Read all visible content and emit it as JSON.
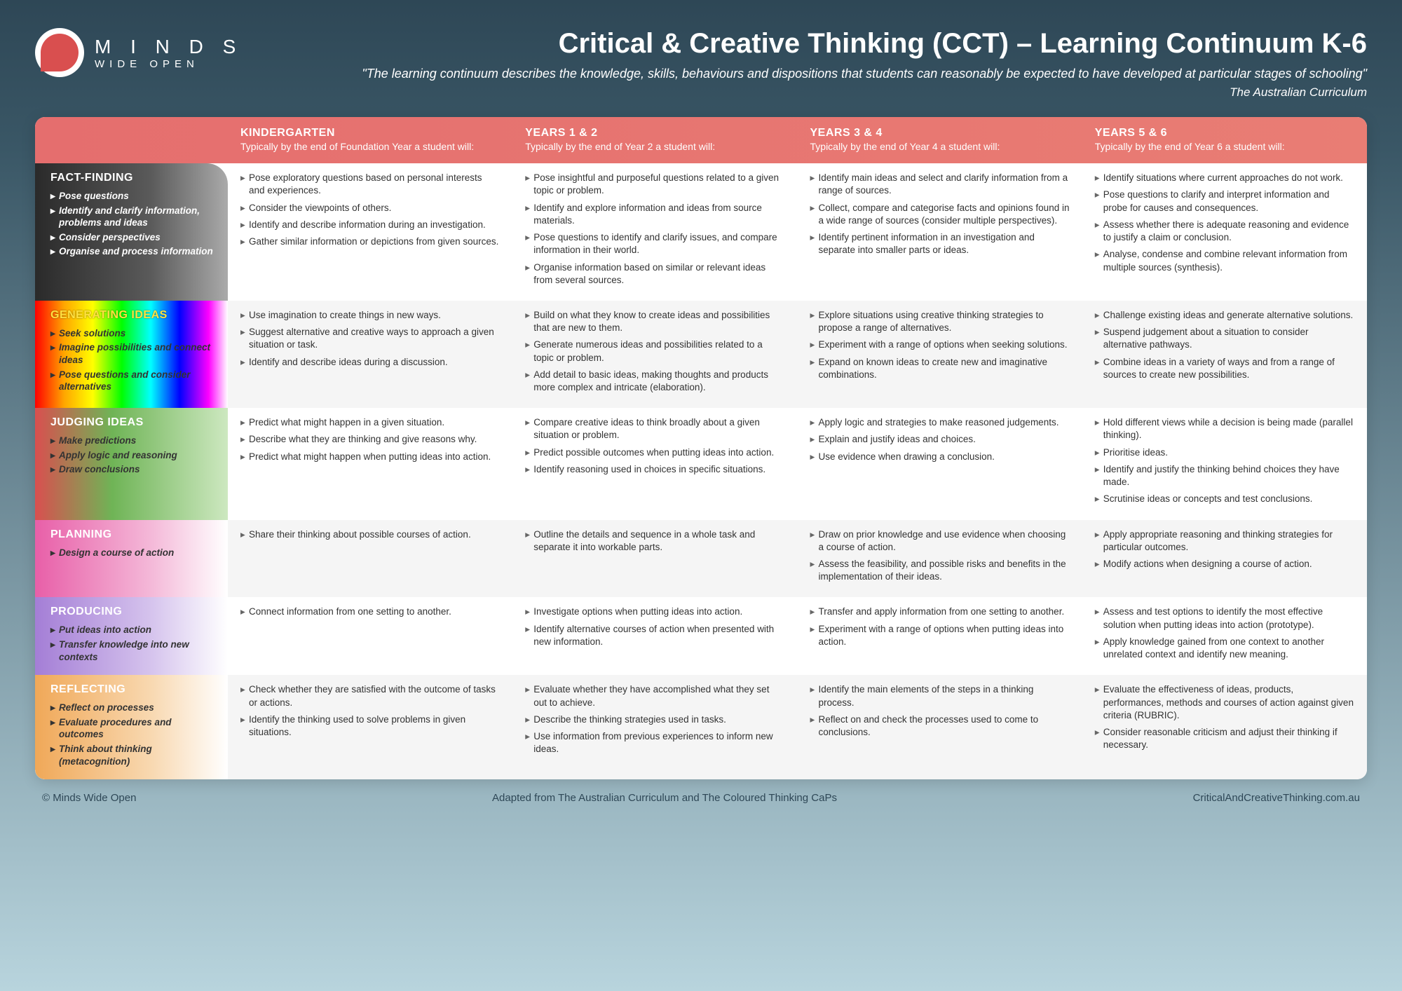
{
  "logo": {
    "main": "M I N D S",
    "sub": "WIDE OPEN"
  },
  "title": "Critical & Creative Thinking (CCT) – Learning Continuum K-6",
  "subtitle": "\"The learning continuum describes the knowledge, skills, behaviours and dispositions that students can reasonably be expected to have developed at particular stages of schooling\"",
  "attribution": "The Australian Curriculum",
  "columns": [
    {
      "title": "KINDERGARTEN",
      "sub": "Typically by the end of Foundation Year a student will:"
    },
    {
      "title": "YEARS 1 & 2",
      "sub": "Typically by the end of Year 2 a student will:"
    },
    {
      "title": "YEARS 3 & 4",
      "sub": "Typically by the end of Year 4 a student will:"
    },
    {
      "title": "YEARS 5 & 6",
      "sub": "Typically by the end of Year 6 a student will:"
    }
  ],
  "rows": [
    {
      "title": "FACT-FINDING",
      "class": "label-fact",
      "subs": [
        "Pose questions",
        "Identify and clarify information, problems and ideas",
        "Consider perspectives",
        "Organise and process information"
      ],
      "cells": [
        [
          "Pose exploratory questions based on personal interests and experiences.",
          "Consider the viewpoints of others.",
          "Identify and describe information during an investigation.",
          "Gather similar information or depictions from given sources."
        ],
        [
          "Pose insightful and purposeful questions related to a given topic or problem.",
          "Identify and explore information and ideas from source materials.",
          "Pose questions to identify and clarify issues, and compare information in their world.",
          "Organise information based on similar or relevant ideas from several sources."
        ],
        [
          "Identify main ideas and select and clarify information from a range of sources.",
          "Collect, compare and categorise facts and opinions found in a wide range of sources (consider multiple perspectives).",
          "Identify pertinent information in an investigation and separate into smaller parts or ideas."
        ],
        [
          "Identify situations where current approaches do not work.",
          "Pose questions to clarify and interpret information and probe for causes and consequences.",
          "Assess whether there is adequate reasoning and evidence to justify a claim or conclusion.",
          "Analyse, condense and combine relevant information from multiple sources (synthesis)."
        ]
      ]
    },
    {
      "title": "GENERATING IDEAS",
      "class": "label-gen",
      "subs": [
        "Seek solutions",
        "Imagine possibilities and connect ideas",
        "Pose questions and consider alternatives"
      ],
      "cells": [
        [
          "Use imagination to create things in new ways.",
          "Suggest alternative and creative ways to approach a given situation or task.",
          "Identify and describe ideas during a discussion."
        ],
        [
          "Build on what they know to create ideas and possibilities that are new to them.",
          "Generate numerous ideas and possibilities related to a topic or problem.",
          "Add detail to basic ideas, making thoughts and products more complex and intricate (elaboration)."
        ],
        [
          "Explore situations using creative thinking strategies to propose a range of alternatives.",
          "Experiment with a range of options when seeking solutions.",
          "Expand on known ideas to create new and imaginative combinations."
        ],
        [
          "Challenge existing ideas and generate alternative solutions.",
          "Suspend judgement about a situation to consider alternative pathways.",
          "Combine ideas in a variety of ways and from a range of sources to create new possibilities."
        ]
      ]
    },
    {
      "title": "JUDGING IDEAS",
      "class": "label-judge",
      "subs": [
        "Make predictions",
        "Apply logic and reasoning",
        "Draw conclusions"
      ],
      "cells": [
        [
          "Predict what might happen in a given situation.",
          "Describe what they are thinking and give reasons why.",
          "Predict what might happen when putting ideas into action."
        ],
        [
          "Compare creative ideas to think broadly about a given situation or problem.",
          "Predict possible outcomes when putting ideas into action.",
          "Identify reasoning used in choices in specific situations."
        ],
        [
          "Apply logic and strategies to make reasoned judgements.",
          "Explain and justify ideas and choices.",
          "Use evidence when drawing a conclusion."
        ],
        [
          "Hold different views while a decision is being made (parallel thinking).",
          "Prioritise ideas.",
          "Identify and justify the thinking behind choices they have made.",
          "Scrutinise ideas or concepts and test conclusions."
        ]
      ]
    },
    {
      "title": "PLANNING",
      "class": "label-plan",
      "subs": [
        "Design a course of action"
      ],
      "cells": [
        [
          "Share their thinking about possible courses of action."
        ],
        [
          "Outline the details and sequence in a whole task and separate it into workable parts."
        ],
        [
          "Draw on prior knowledge and use evidence when choosing a course of action.",
          "Assess the feasibility, and possible risks and benefits in the implementation of their ideas."
        ],
        [
          "Apply appropriate reasoning and thinking strategies for particular outcomes.",
          "Modify actions when designing a course of action."
        ]
      ]
    },
    {
      "title": "PRODUCING",
      "class": "label-prod",
      "subs": [
        "Put ideas into action",
        "Transfer knowledge into new contexts"
      ],
      "cells": [
        [
          "Connect information from one setting to another."
        ],
        [
          "Investigate options when putting ideas into action.",
          "Identify alternative courses of action when presented with new information."
        ],
        [
          "Transfer and apply information from one setting to another.",
          "Experiment with a range of options when putting ideas into action."
        ],
        [
          "Assess and test options to identify the most effective solution when putting ideas into action (prototype).",
          "Apply knowledge gained from one context to another unrelated context and identify new meaning."
        ]
      ]
    },
    {
      "title": "REFLECTING",
      "class": "label-refl",
      "subs": [
        "Reflect on processes",
        "Evaluate procedures and outcomes",
        "Think about thinking (metacognition)"
      ],
      "cells": [
        [
          "Check whether they are satisfied with the outcome of tasks or actions.",
          "Identify the thinking used to solve problems in given situations."
        ],
        [
          "Evaluate whether they have accomplished what they set out to achieve.",
          "Describe the thinking strategies used in tasks.",
          "Use information from previous experiences to inform new ideas."
        ],
        [
          "Identify the main elements of the steps in a thinking process.",
          "Reflect on and check the processes used to come to conclusions."
        ],
        [
          "Evaluate the effectiveness of ideas, products, performances, methods and courses of action against given criteria (RUBRIC).",
          "Consider reasonable criticism and adjust their thinking if necessary."
        ]
      ]
    }
  ],
  "footer": {
    "left": "© Minds Wide Open",
    "center": "Adapted from The Australian Curriculum and The Coloured Thinking CaPs",
    "right": "CriticalAndCreativeThinking.com.au"
  }
}
